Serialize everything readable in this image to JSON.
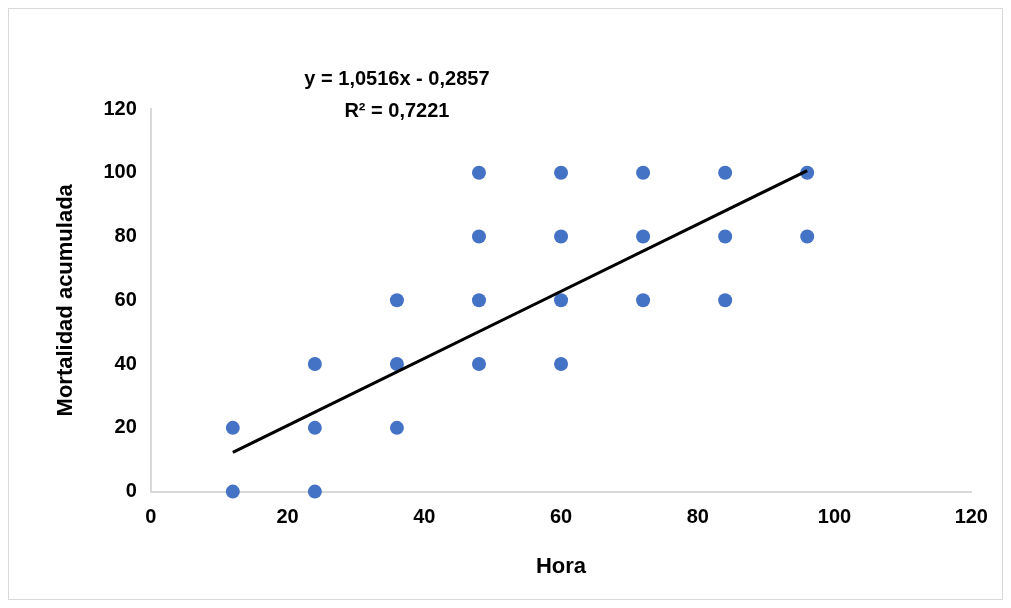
{
  "chart_data": {
    "type": "scatter",
    "xlabel": "Hora",
    "ylabel": "Mortalidad acumulada",
    "xlim": [
      0,
      120
    ],
    "xticks": [
      0,
      20,
      40,
      60,
      80,
      100,
      120
    ],
    "ylim": [
      0,
      120
    ],
    "yticks": [
      0,
      20,
      40,
      60,
      80,
      100,
      120
    ],
    "grid": false,
    "legend": false,
    "marker": "circle",
    "annotations": [
      "y = 1,0516x - 0,2857",
      "R² = 0,7221"
    ],
    "series": [
      {
        "color": "#4472c4",
        "x": [
          12,
          12,
          24,
          24,
          24,
          36,
          36,
          36,
          48,
          48,
          48,
          48,
          60,
          60,
          60,
          60,
          72,
          72,
          72,
          84,
          84,
          84,
          96,
          96
        ],
        "values": [
          0,
          20,
          0,
          20,
          40,
          20,
          40,
          60,
          40,
          60,
          80,
          100,
          40,
          60,
          80,
          100,
          60,
          80,
          100,
          60,
          80,
          100,
          80,
          100
        ]
      },
      {
        "type": "line",
        "color": "#000000",
        "marker": "none",
        "line_style": "solid",
        "x": [
          12,
          96
        ],
        "values": [
          12.3,
          100.7
        ]
      }
    ]
  }
}
